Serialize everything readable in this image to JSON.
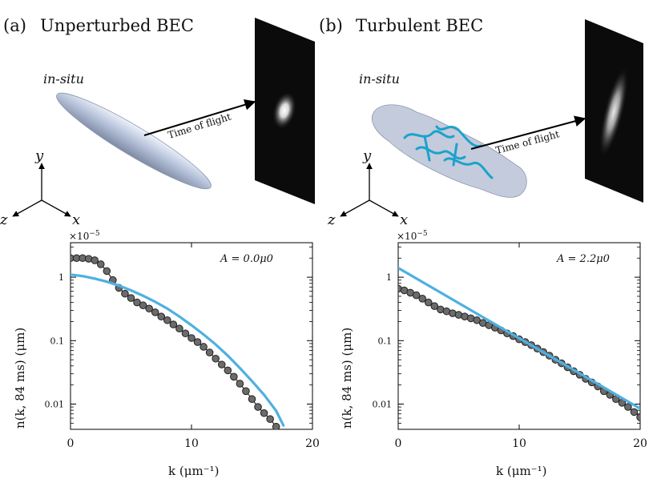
{
  "panels": [
    {
      "label": "(a)",
      "title": "Unperturbed BEC",
      "insitu": "in-situ",
      "arrow": "Time of flight",
      "axes": {
        "y": "y",
        "z": "z",
        "x": "x"
      },
      "multiplier": "×10",
      "multiplier_exp": "−5",
      "annotation": "A = 0.0μ0"
    },
    {
      "label": "(b)",
      "title": "Turbulent BEC",
      "insitu": "in-situ",
      "arrow": "Time of flight",
      "axes": {
        "y": "y",
        "z": "z",
        "x": "x"
      },
      "multiplier": "×10",
      "multiplier_exp": "−5",
      "annotation": "A = 2.2μ0"
    }
  ],
  "chart_data": [
    {
      "type": "scatter",
      "title": "A = 0.0μ0",
      "xlabel": "k (μm⁻¹)",
      "ylabel": "n(k, 84 ms) (μm)",
      "xlim": [
        0,
        20
      ],
      "ylim": [
        0.004,
        3.5
      ],
      "yscale": "log",
      "xticks": [
        "0",
        "10",
        "20"
      ],
      "yticks": [
        "1",
        "0.1",
        "0.01"
      ],
      "colors": {
        "points": "#6b6b6b",
        "fit": "#4fb0e0"
      },
      "series": [
        {
          "name": "data",
          "x": [
            0,
            0.5,
            1,
            1.5,
            2,
            2.5,
            3,
            3.5,
            4,
            4.5,
            5,
            5.5,
            6,
            6.5,
            7,
            7.5,
            8,
            8.5,
            9,
            9.5,
            10,
            10.5,
            11,
            11.5,
            12,
            12.5,
            13,
            13.5,
            14,
            14.5,
            15,
            15.5,
            16,
            16.5,
            17,
            17.5
          ],
          "values": [
            2.0,
            2.0,
            2.0,
            1.95,
            1.85,
            1.6,
            1.25,
            0.9,
            0.68,
            0.55,
            0.47,
            0.4,
            0.36,
            0.32,
            0.28,
            0.24,
            0.21,
            0.18,
            0.155,
            0.13,
            0.11,
            0.095,
            0.08,
            0.065,
            0.052,
            0.042,
            0.034,
            0.027,
            0.021,
            0.016,
            0.012,
            0.009,
            0.0072,
            0.0058,
            0.0044,
            0.0034
          ]
        },
        {
          "name": "fit",
          "x": [
            0,
            1,
            2,
            3,
            4,
            5,
            6,
            7,
            8,
            9,
            10,
            11,
            12,
            13,
            14,
            15,
            16,
            17,
            17.6
          ],
          "values": [
            1.1,
            1.04,
            0.95,
            0.85,
            0.74,
            0.62,
            0.51,
            0.41,
            0.32,
            0.24,
            0.175,
            0.125,
            0.087,
            0.058,
            0.037,
            0.023,
            0.014,
            0.0078,
            0.0046
          ]
        }
      ]
    },
    {
      "type": "scatter",
      "title": "A = 2.2μ0",
      "xlabel": "k (μm⁻¹)",
      "ylabel": "n(k, 84 ms) (μm)",
      "xlim": [
        0,
        20
      ],
      "ylim": [
        0.004,
        3.5
      ],
      "yscale": "log",
      "xticks": [
        "0",
        "10",
        "20"
      ],
      "yticks": [
        "1",
        "0.1",
        "0.01"
      ],
      "colors": {
        "points": "#6b6b6b",
        "fit": "#4fb0e0"
      },
      "series": [
        {
          "name": "data",
          "x": [
            0,
            0.5,
            1,
            1.5,
            2,
            2.5,
            3,
            3.5,
            4,
            4.5,
            5,
            5.5,
            6,
            6.5,
            7,
            7.5,
            8,
            8.5,
            9,
            9.5,
            10,
            10.5,
            11,
            11.5,
            12,
            12.5,
            13,
            13.5,
            14,
            14.5,
            15,
            15.5,
            16,
            16.5,
            17,
            17.5,
            18,
            18.5,
            19,
            19.5,
            20
          ],
          "values": [
            0.66,
            0.62,
            0.57,
            0.52,
            0.46,
            0.4,
            0.35,
            0.31,
            0.29,
            0.27,
            0.255,
            0.24,
            0.225,
            0.21,
            0.19,
            0.175,
            0.16,
            0.145,
            0.13,
            0.118,
            0.105,
            0.095,
            0.085,
            0.075,
            0.066,
            0.058,
            0.05,
            0.044,
            0.038,
            0.033,
            0.029,
            0.025,
            0.022,
            0.019,
            0.016,
            0.014,
            0.012,
            0.0105,
            0.009,
            0.0075,
            0.0062
          ]
        },
        {
          "name": "fit",
          "x": [
            0,
            20
          ],
          "values": [
            1.4,
            0.0085
          ]
        }
      ]
    }
  ]
}
